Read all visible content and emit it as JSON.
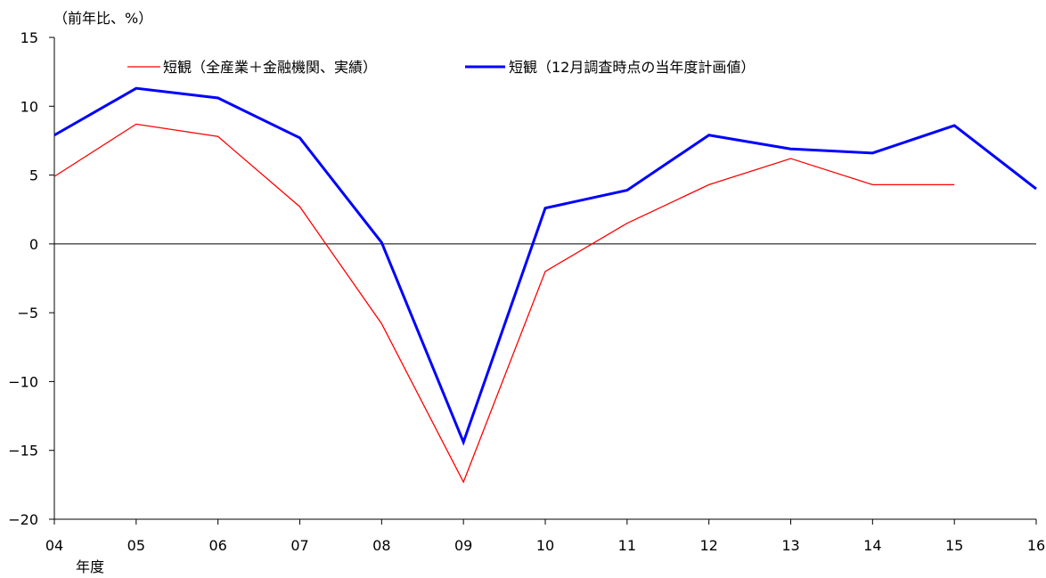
{
  "chart_data": {
    "type": "line",
    "title": "",
    "unit_label": "（前年比、%）",
    "xlabel": "年度",
    "ylabel": "",
    "categories": [
      "04",
      "05",
      "06",
      "07",
      "08",
      "09",
      "10",
      "11",
      "12",
      "13",
      "14",
      "15",
      "16"
    ],
    "ylim": [
      -20,
      15
    ],
    "yticks": [
      15,
      10,
      5,
      0,
      -5,
      -10,
      -15,
      -20
    ],
    "ytick_labels": [
      "15",
      "10",
      "5",
      "0",
      "−5",
      "−10",
      "−15",
      "−20"
    ],
    "legend_position": "top",
    "series": [
      {
        "name": "短観（全産業＋金融機関、実績）",
        "color": "#ff0000",
        "style": "thin",
        "values": [
          4.9,
          8.7,
          7.8,
          2.7,
          -5.8,
          -17.3,
          -2.0,
          1.5,
          4.3,
          6.2,
          4.3,
          4.3,
          null
        ]
      },
      {
        "name": "短観（12月調査時点の当年度計画値）",
        "color": "#0000ff",
        "style": "thick",
        "values": [
          7.9,
          11.3,
          10.6,
          7.7,
          0.1,
          -14.4,
          2.6,
          3.9,
          7.9,
          6.9,
          6.6,
          8.6,
          4.0
        ]
      }
    ]
  }
}
